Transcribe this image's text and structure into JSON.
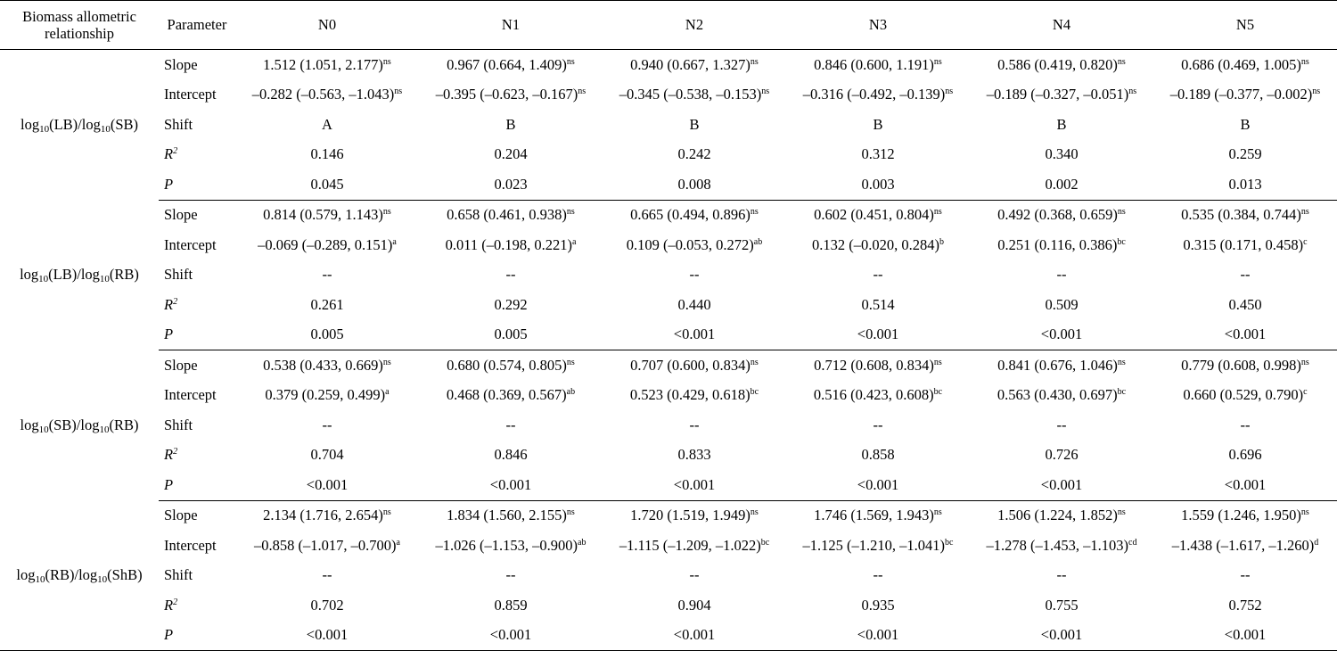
{
  "header": {
    "relationship_l1": "Biomass allometric",
    "relationship_l2": "relationship",
    "parameter": "Parameter",
    "treatments": [
      "N0",
      "N1",
      "N2",
      "N3",
      "N4",
      "N5"
    ]
  },
  "groups": [
    {
      "relationship": {
        "a": "LB",
        "b": "SB"
      },
      "rows": [
        {
          "param": "Slope",
          "r2": false,
          "cells": [
            {
              "v": "1.512 (1.051, 2.177)",
              "s": "ns"
            },
            {
              "v": "0.967 (0.664, 1.409)",
              "s": "ns"
            },
            {
              "v": "0.940 (0.667, 1.327)",
              "s": "ns"
            },
            {
              "v": "0.846 (0.600, 1.191)",
              "s": "ns"
            },
            {
              "v": "0.586 (0.419, 0.820)",
              "s": "ns"
            },
            {
              "v": "0.686 (0.469, 1.005)",
              "s": "ns"
            }
          ]
        },
        {
          "param": "Intercept",
          "r2": false,
          "cells": [
            {
              "v": "–0.282 (–0.563, –1.043)",
              "s": "ns"
            },
            {
              "v": "–0.395 (–0.623, –0.167)",
              "s": "ns"
            },
            {
              "v": "–0.345 (–0.538, –0.153)",
              "s": "ns"
            },
            {
              "v": "–0.316 (–0.492, –0.139)",
              "s": "ns"
            },
            {
              "v": "–0.189 (–0.327, –0.051)",
              "s": "ns"
            },
            {
              "v": "–0.189 (–0.377, –0.002)",
              "s": "ns"
            }
          ]
        },
        {
          "param": "Shift",
          "r2": false,
          "cells": [
            {
              "v": "A",
              "s": ""
            },
            {
              "v": "B",
              "s": ""
            },
            {
              "v": "B",
              "s": ""
            },
            {
              "v": "B",
              "s": ""
            },
            {
              "v": "B",
              "s": ""
            },
            {
              "v": "B",
              "s": ""
            }
          ]
        },
        {
          "param": "R",
          "sup": "2",
          "italic": true,
          "cells": [
            {
              "v": "0.146",
              "s": ""
            },
            {
              "v": "0.204",
              "s": ""
            },
            {
              "v": "0.242",
              "s": ""
            },
            {
              "v": "0.312",
              "s": ""
            },
            {
              "v": "0.340",
              "s": ""
            },
            {
              "v": "0.259",
              "s": ""
            }
          ]
        },
        {
          "param": "P",
          "italic": true,
          "cells": [
            {
              "v": "0.045",
              "s": ""
            },
            {
              "v": "0.023",
              "s": ""
            },
            {
              "v": "0.008",
              "s": ""
            },
            {
              "v": "0.003",
              "s": ""
            },
            {
              "v": "0.002",
              "s": ""
            },
            {
              "v": "0.013",
              "s": ""
            }
          ]
        }
      ]
    },
    {
      "relationship": {
        "a": "LB",
        "b": "RB"
      },
      "rows": [
        {
          "param": "Slope",
          "cells": [
            {
              "v": "0.814 (0.579, 1.143)",
              "s": "ns"
            },
            {
              "v": "0.658 (0.461, 0.938)",
              "s": "ns"
            },
            {
              "v": "0.665 (0.494, 0.896)",
              "s": "ns"
            },
            {
              "v": "0.602 (0.451, 0.804)",
              "s": "ns"
            },
            {
              "v": "0.492 (0.368, 0.659)",
              "s": "ns"
            },
            {
              "v": "0.535 (0.384, 0.744)",
              "s": "ns"
            }
          ]
        },
        {
          "param": "Intercept",
          "cells": [
            {
              "v": "–0.069 (–0.289, 0.151)",
              "s": "a"
            },
            {
              "v": "0.011 (–0.198, 0.221)",
              "s": "a"
            },
            {
              "v": "0.109 (–0.053, 0.272)",
              "s": "ab"
            },
            {
              "v": "0.132 (–0.020, 0.284)",
              "s": "b"
            },
            {
              "v": "0.251 (0.116, 0.386)",
              "s": "bc"
            },
            {
              "v": "0.315 (0.171, 0.458)",
              "s": "c"
            }
          ]
        },
        {
          "param": "Shift",
          "cells": [
            {
              "v": "--",
              "s": ""
            },
            {
              "v": "--",
              "s": ""
            },
            {
              "v": "--",
              "s": ""
            },
            {
              "v": "--",
              "s": ""
            },
            {
              "v": "--",
              "s": ""
            },
            {
              "v": "--",
              "s": ""
            }
          ]
        },
        {
          "param": "R",
          "sup": "2",
          "italic": true,
          "cells": [
            {
              "v": "0.261",
              "s": ""
            },
            {
              "v": "0.292",
              "s": ""
            },
            {
              "v": "0.440",
              "s": ""
            },
            {
              "v": "0.514",
              "s": ""
            },
            {
              "v": "0.509",
              "s": ""
            },
            {
              "v": "0.450",
              "s": ""
            }
          ]
        },
        {
          "param": "P",
          "italic": true,
          "cells": [
            {
              "v": "0.005",
              "s": ""
            },
            {
              "v": "0.005",
              "s": ""
            },
            {
              "v": "<0.001",
              "s": ""
            },
            {
              "v": "<0.001",
              "s": ""
            },
            {
              "v": "<0.001",
              "s": ""
            },
            {
              "v": "<0.001",
              "s": ""
            }
          ]
        }
      ]
    },
    {
      "relationship": {
        "a": "SB",
        "b": "RB"
      },
      "rows": [
        {
          "param": "Slope",
          "cells": [
            {
              "v": "0.538 (0.433, 0.669)",
              "s": "ns"
            },
            {
              "v": "0.680 (0.574, 0.805)",
              "s": "ns"
            },
            {
              "v": "0.707 (0.600, 0.834)",
              "s": "ns"
            },
            {
              "v": "0.712 (0.608, 0.834)",
              "s": "ns"
            },
            {
              "v": "0.841 (0.676, 1.046)",
              "s": "ns"
            },
            {
              "v": "0.779 (0.608, 0.998)",
              "s": "ns"
            }
          ]
        },
        {
          "param": "Intercept",
          "cells": [
            {
              "v": "0.379 (0.259, 0.499)",
              "s": "a"
            },
            {
              "v": "0.468 (0.369, 0.567)",
              "s": "ab"
            },
            {
              "v": "0.523 (0.429, 0.618)",
              "s": "bc"
            },
            {
              "v": "0.516 (0.423, 0.608)",
              "s": "bc"
            },
            {
              "v": "0.563 (0.430, 0.697)",
              "s": "bc"
            },
            {
              "v": "0.660 (0.529, 0.790)",
              "s": "c"
            }
          ]
        },
        {
          "param": "Shift",
          "cells": [
            {
              "v": "--",
              "s": ""
            },
            {
              "v": "--",
              "s": ""
            },
            {
              "v": "--",
              "s": ""
            },
            {
              "v": "--",
              "s": ""
            },
            {
              "v": "--",
              "s": ""
            },
            {
              "v": "--",
              "s": ""
            }
          ]
        },
        {
          "param": "R",
          "sup": "2",
          "italic": true,
          "cells": [
            {
              "v": "0.704",
              "s": ""
            },
            {
              "v": "0.846",
              "s": ""
            },
            {
              "v": "0.833",
              "s": ""
            },
            {
              "v": "0.858",
              "s": ""
            },
            {
              "v": "0.726",
              "s": ""
            },
            {
              "v": "0.696",
              "s": ""
            }
          ]
        },
        {
          "param": "P",
          "italic": true,
          "cells": [
            {
              "v": "<0.001",
              "s": ""
            },
            {
              "v": "<0.001",
              "s": ""
            },
            {
              "v": "<0.001",
              "s": ""
            },
            {
              "v": "<0.001",
              "s": ""
            },
            {
              "v": "<0.001",
              "s": ""
            },
            {
              "v": "<0.001",
              "s": ""
            }
          ]
        }
      ]
    },
    {
      "relationship": {
        "a": "RB",
        "b": "ShB"
      },
      "rows": [
        {
          "param": "Slope",
          "cells": [
            {
              "v": "2.134 (1.716, 2.654)",
              "s": "ns"
            },
            {
              "v": "1.834 (1.560, 2.155)",
              "s": "ns"
            },
            {
              "v": "1.720 (1.519, 1.949)",
              "s": "ns"
            },
            {
              "v": "1.746 (1.569, 1.943)",
              "s": "ns"
            },
            {
              "v": "1.506 (1.224, 1.852)",
              "s": "ns"
            },
            {
              "v": "1.559 (1.246, 1.950)",
              "s": "ns"
            }
          ]
        },
        {
          "param": "Intercept",
          "cells": [
            {
              "v": "–0.858 (–1.017, –0.700)",
              "s": "a"
            },
            {
              "v": "–1.026 (–1.153, –0.900)",
              "s": "ab"
            },
            {
              "v": "–1.115 (–1.209, –1.022)",
              "s": "bc"
            },
            {
              "v": "–1.125 (–1.210, –1.041)",
              "s": "bc"
            },
            {
              "v": "–1.278 (–1.453, –1.103)",
              "s": "cd"
            },
            {
              "v": "–1.438 (–1.617, –1.260)",
              "s": "d"
            }
          ]
        },
        {
          "param": "Shift",
          "cells": [
            {
              "v": "--",
              "s": ""
            },
            {
              "v": "--",
              "s": ""
            },
            {
              "v": "--",
              "s": ""
            },
            {
              "v": "--",
              "s": ""
            },
            {
              "v": "--",
              "s": ""
            },
            {
              "v": "--",
              "s": ""
            }
          ]
        },
        {
          "param": "R",
          "sup": "2",
          "italic": true,
          "cells": [
            {
              "v": "0.702",
              "s": ""
            },
            {
              "v": "0.859",
              "s": ""
            },
            {
              "v": "0.904",
              "s": ""
            },
            {
              "v": "0.935",
              "s": ""
            },
            {
              "v": "0.755",
              "s": ""
            },
            {
              "v": "0.752",
              "s": ""
            }
          ]
        },
        {
          "param": "P",
          "italic": true,
          "cells": [
            {
              "v": "<0.001",
              "s": ""
            },
            {
              "v": "<0.001",
              "s": ""
            },
            {
              "v": "<0.001",
              "s": ""
            },
            {
              "v": "<0.001",
              "s": ""
            },
            {
              "v": "<0.001",
              "s": ""
            },
            {
              "v": "<0.001",
              "s": ""
            }
          ]
        }
      ]
    }
  ],
  "log_prefix": "log",
  "log_base": "10"
}
